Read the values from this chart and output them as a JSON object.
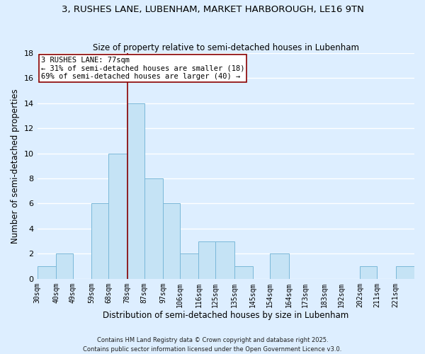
{
  "title": "3, RUSHES LANE, LUBENHAM, MARKET HARBOROUGH, LE16 9TN",
  "subtitle": "Size of property relative to semi-detached houses in Lubenham",
  "xlabel": "Distribution of semi-detached houses by size in Lubenham",
  "ylabel": "Number of semi-detached properties",
  "footnote1": "Contains HM Land Registry data © Crown copyright and database right 2025.",
  "footnote2": "Contains public sector information licensed under the Open Government Licence v3.0.",
  "bar_edges": [
    30,
    40,
    49,
    59,
    68,
    78,
    87,
    97,
    106,
    116,
    125,
    135,
    145,
    154,
    164,
    173,
    183,
    192,
    202,
    211,
    221
  ],
  "bar_heights": [
    1,
    2,
    0,
    6,
    10,
    14,
    8,
    6,
    2,
    3,
    3,
    1,
    0,
    2,
    0,
    0,
    0,
    0,
    1,
    0,
    1
  ],
  "bar_color": "#c5e3f5",
  "bar_edge_color": "#7ab8d9",
  "vline_x": 78,
  "vline_color": "#8b0000",
  "annotation_title": "3 RUSHES LANE: 77sqm",
  "annotation_line1": "← 31% of semi-detached houses are smaller (18)",
  "annotation_line2": "69% of semi-detached houses are larger (40) →",
  "annotation_box_color": "#ffffff",
  "annotation_box_edge": "#8b0000",
  "ylim": [
    0,
    18
  ],
  "background_color": "#ddeeff",
  "grid_color": "#ffffff",
  "title_fontsize": 9.5,
  "subtitle_fontsize": 8.5,
  "tick_label_fontsize": 7,
  "axis_label_fontsize": 8.5,
  "footnote_fontsize": 6
}
